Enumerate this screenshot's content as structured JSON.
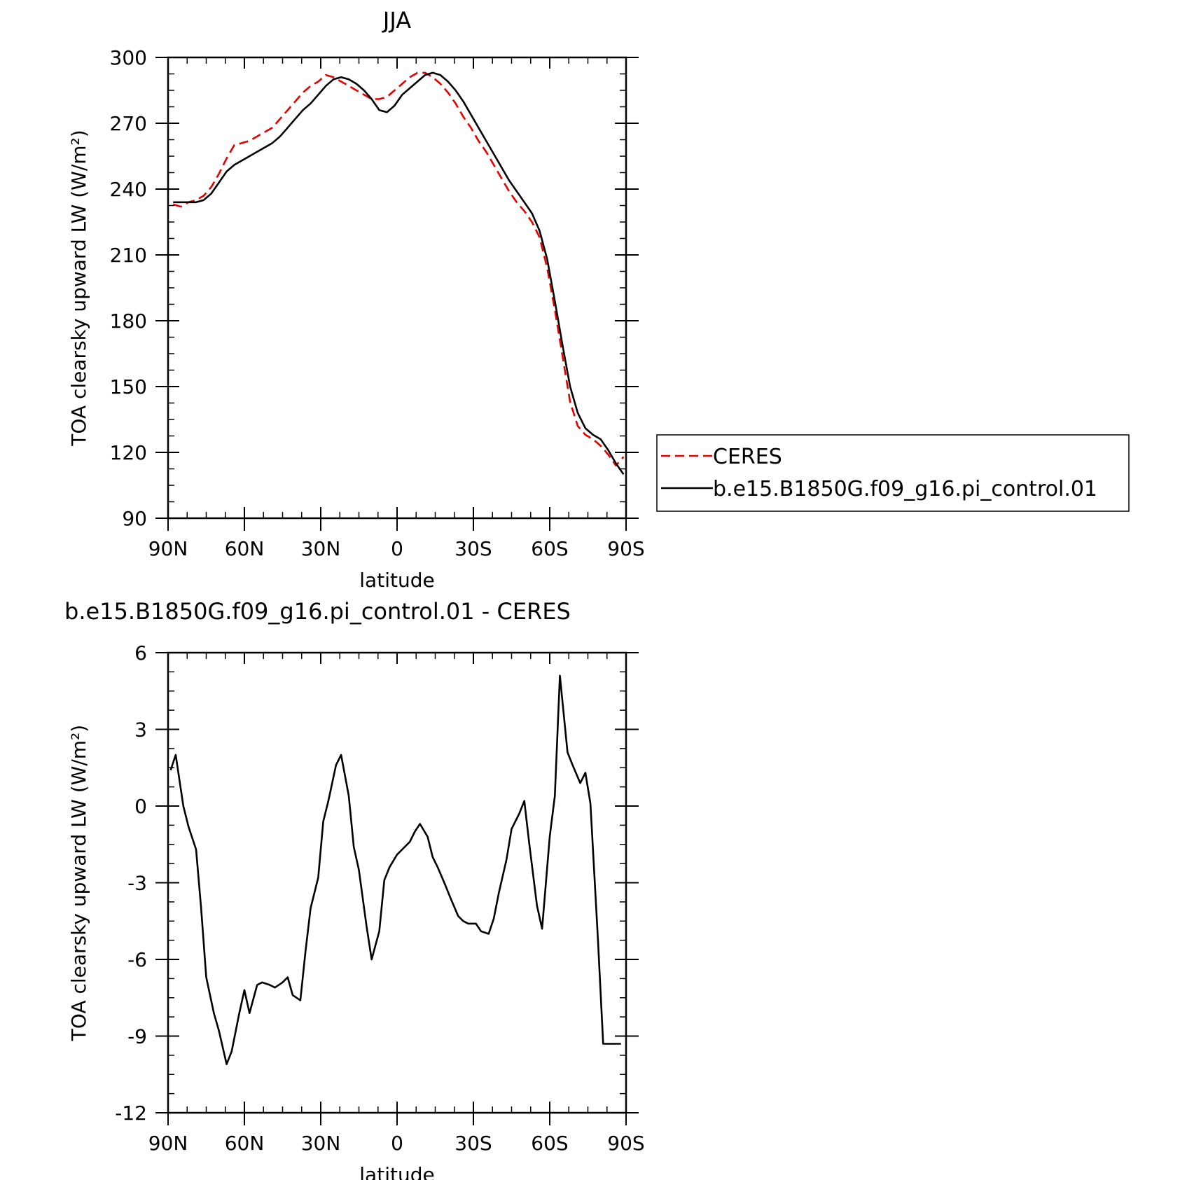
{
  "chart_data": [
    {
      "type": "line",
      "title": "JJA",
      "xlabel": "latitude",
      "ylabel": "TOA clearsky upward LW (W/m²)",
      "xlim": [
        90,
        -90
      ],
      "ylim": [
        90,
        300
      ],
      "xticks": [
        90,
        60,
        30,
        0,
        -30,
        -60,
        -90
      ],
      "xtick_labels": [
        "90N",
        "60N",
        "30N",
        "0",
        "30S",
        "60S",
        "90S"
      ],
      "yticks": [
        90,
        120,
        150,
        180,
        210,
        240,
        270,
        300
      ],
      "ytick_labels": [
        "90",
        "120",
        "150",
        "180",
        "210",
        "240",
        "270",
        "300"
      ],
      "legend": "right",
      "series": [
        {
          "name": "CERES",
          "color": "#e60000",
          "style": "dashed",
          "x": [
            88,
            85,
            82,
            79,
            76,
            73,
            70,
            67,
            64,
            61,
            58,
            55,
            52,
            49,
            46,
            43,
            40,
            37,
            34,
            31,
            28,
            25,
            22,
            19,
            16,
            13,
            10,
            7,
            4,
            1,
            -2,
            -5,
            -8,
            -11,
            -14,
            -17,
            -20,
            -23,
            -26,
            -29,
            -32,
            -35,
            -38,
            -41,
            -44,
            -47,
            -50,
            -53,
            -56,
            -59,
            -62,
            -65,
            -68,
            -71,
            -74,
            -77,
            -80,
            -83,
            -86,
            -89
          ],
          "y": [
            233,
            232,
            234,
            235,
            237,
            241,
            247,
            254,
            260,
            261,
            262,
            264,
            266,
            268,
            272,
            276,
            280,
            284,
            287,
            289,
            292,
            291,
            289,
            287,
            285,
            283,
            281,
            281,
            282,
            285,
            288,
            291,
            293,
            293,
            291,
            288,
            284,
            279,
            273,
            268,
            262,
            257,
            251,
            245,
            239,
            234,
            230,
            225,
            218,
            204,
            185,
            164,
            143,
            132,
            128,
            126,
            123,
            119,
            114,
            118
          ]
        },
        {
          "name": "b.e15.B1850G.f09_g16.pi_control.01",
          "color": "#000000",
          "style": "solid",
          "x": [
            88,
            85,
            82,
            79,
            76,
            73,
            70,
            67,
            64,
            61,
            58,
            55,
            52,
            49,
            46,
            43,
            40,
            37,
            34,
            31,
            28,
            25,
            22,
            19,
            16,
            13,
            10,
            7,
            4,
            1,
            -2,
            -5,
            -8,
            -11,
            -14,
            -17,
            -20,
            -23,
            -26,
            -29,
            -32,
            -35,
            -38,
            -41,
            -44,
            -47,
            -50,
            -53,
            -56,
            -59,
            -62,
            -65,
            -68,
            -71,
            -74,
            -77,
            -80,
            -83,
            -86,
            -89
          ],
          "y": [
            234,
            234,
            234,
            234,
            235,
            238,
            243,
            248,
            251,
            253,
            255,
            257,
            259,
            261,
            264,
            268,
            272,
            276,
            279,
            283,
            287,
            290,
            291,
            290,
            288,
            285,
            281,
            276,
            275,
            278,
            283,
            286,
            289,
            292,
            293,
            292,
            289,
            285,
            280,
            274,
            268,
            262,
            256,
            250,
            244,
            239,
            234,
            229,
            221,
            208,
            189,
            169,
            150,
            138,
            131,
            128,
            126,
            121,
            115,
            110
          ]
        }
      ]
    },
    {
      "type": "line",
      "title": "b.e15.B1850G.f09_g16.pi_control.01 - CERES",
      "xlabel": "latitude",
      "ylabel": "TOA clearsky upward LW (W/m²)",
      "xlim": [
        90,
        -90
      ],
      "ylim": [
        -12,
        6
      ],
      "xticks": [
        90,
        60,
        30,
        0,
        -30,
        -60,
        -90
      ],
      "xtick_labels": [
        "90N",
        "60N",
        "30N",
        "0",
        "30S",
        "60S",
        "90S"
      ],
      "yticks": [
        -12,
        -9,
        -6,
        -3,
        0,
        3,
        6
      ],
      "ytick_labels": [
        "-12",
        "-9",
        "-6",
        "-3",
        "0",
        "3",
        "6"
      ],
      "series": [
        {
          "color": "#000000",
          "style": "solid",
          "x": [
            89,
            87,
            84,
            82,
            79,
            77,
            75,
            72,
            70,
            67,
            65,
            62,
            60,
            58,
            55,
            53,
            50,
            48,
            45,
            43,
            41,
            38,
            36,
            34,
            31,
            29,
            27,
            24,
            22,
            19,
            17,
            15,
            12,
            10,
            7,
            5,
            3,
            0,
            -2,
            -5,
            -7,
            -9,
            -12,
            -14,
            -16,
            -19,
            -21,
            -24,
            -26,
            -28,
            -31,
            -33,
            -36,
            -38,
            -40,
            -43,
            -45,
            -48,
            -50,
            -52,
            -55,
            -57,
            -60,
            -62,
            -64,
            -67,
            -69,
            -72,
            -74,
            -76,
            -79,
            -81,
            -84,
            -86,
            -88
          ],
          "y": [
            1.4,
            2.0,
            0.0,
            -0.8,
            -1.7,
            -4.0,
            -6.7,
            -8.1,
            -8.8,
            -10.1,
            -9.6,
            -8.1,
            -7.2,
            -8.1,
            -7.0,
            -6.9,
            -7.0,
            -7.1,
            -6.9,
            -6.7,
            -7.4,
            -7.6,
            -5.7,
            -4.0,
            -2.8,
            -0.6,
            0.2,
            1.6,
            2.0,
            0.4,
            -1.6,
            -2.5,
            -4.7,
            -6.0,
            -4.9,
            -2.9,
            -2.4,
            -1.9,
            -1.7,
            -1.4,
            -1.0,
            -0.7,
            -1.2,
            -2.0,
            -2.4,
            -3.1,
            -3.6,
            -4.3,
            -4.5,
            -4.6,
            -4.6,
            -4.9,
            -5.0,
            -4.4,
            -3.4,
            -2.1,
            -0.9,
            -0.3,
            0.2,
            -1.5,
            -3.9,
            -4.8,
            -1.2,
            0.4,
            5.1,
            2.1,
            1.6,
            0.9,
            1.3,
            0.1,
            -5.3,
            -9.3,
            -9.3,
            -9.3,
            -9.3
          ]
        }
      ]
    }
  ]
}
